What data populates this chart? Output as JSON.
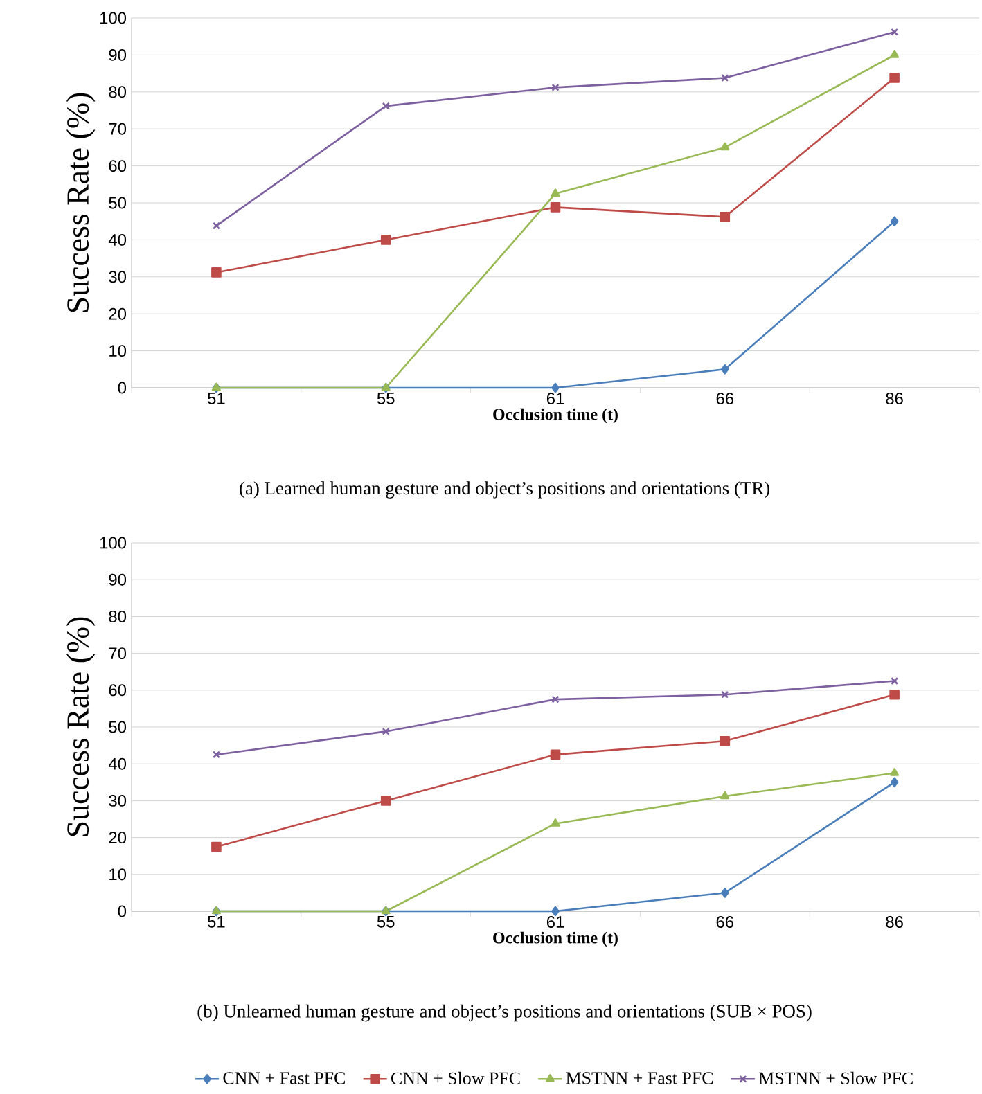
{
  "chart_data": [
    {
      "type": "line",
      "xlabel": "Occlusion time (t)",
      "ylabel": "Success Rate (%)",
      "categories": [
        "51",
        "55",
        "61",
        "66",
        "86"
      ],
      "ylim": [
        0,
        100
      ],
      "yticks": [
        0,
        10,
        20,
        30,
        40,
        50,
        60,
        70,
        80,
        90,
        100
      ],
      "grid": "y",
      "legend": false,
      "annotations": [
        "(a) Learned human gesture and object’s positions and orientations (TR)"
      ],
      "series": [
        {
          "color": "#4a7ebb",
          "marker": "diamond",
          "values": [
            0,
            0,
            0,
            5,
            45
          ]
        },
        {
          "color": "#be4b48",
          "marker": "square",
          "values": [
            31.2,
            40,
            48.8,
            46.2,
            83.8
          ]
        },
        {
          "color": "#98b954",
          "marker": "triangle",
          "values": [
            0,
            0,
            52.5,
            65,
            90
          ]
        },
        {
          "color": "#7d60a0",
          "marker": "cross",
          "values": [
            43.8,
            76.2,
            81.2,
            83.8,
            96.2
          ]
        }
      ]
    },
    {
      "type": "line",
      "xlabel": "Occlusion time (t)",
      "ylabel": "Success Rate (%)",
      "categories": [
        "51",
        "55",
        "61",
        "66",
        "86"
      ],
      "ylim": [
        0,
        100
      ],
      "yticks": [
        0,
        10,
        20,
        30,
        40,
        50,
        60,
        70,
        80,
        90,
        100
      ],
      "grid": "y",
      "legend": "bottom",
      "annotations": [
        "(b) Unlearned human gesture and object’s positions and orientations (SUB × POS)"
      ],
      "series": [
        {
          "name": "CNN + Fast PFC",
          "color": "#4a7ebb",
          "marker": "diamond",
          "values": [
            0,
            0,
            0,
            5,
            35
          ]
        },
        {
          "name": "CNN + Slow PFC",
          "color": "#be4b48",
          "marker": "square",
          "values": [
            17.5,
            30,
            42.5,
            46.2,
            58.8
          ]
        },
        {
          "name": "MSTNN + Fast PFC",
          "color": "#98b954",
          "marker": "triangle",
          "values": [
            0,
            0,
            23.8,
            31.2,
            37.5
          ]
        },
        {
          "name": "MSTNN + Slow PFC",
          "color": "#7d60a0",
          "marker": "cross",
          "values": [
            42.5,
            48.8,
            57.5,
            58.8,
            62.5
          ]
        }
      ]
    }
  ]
}
